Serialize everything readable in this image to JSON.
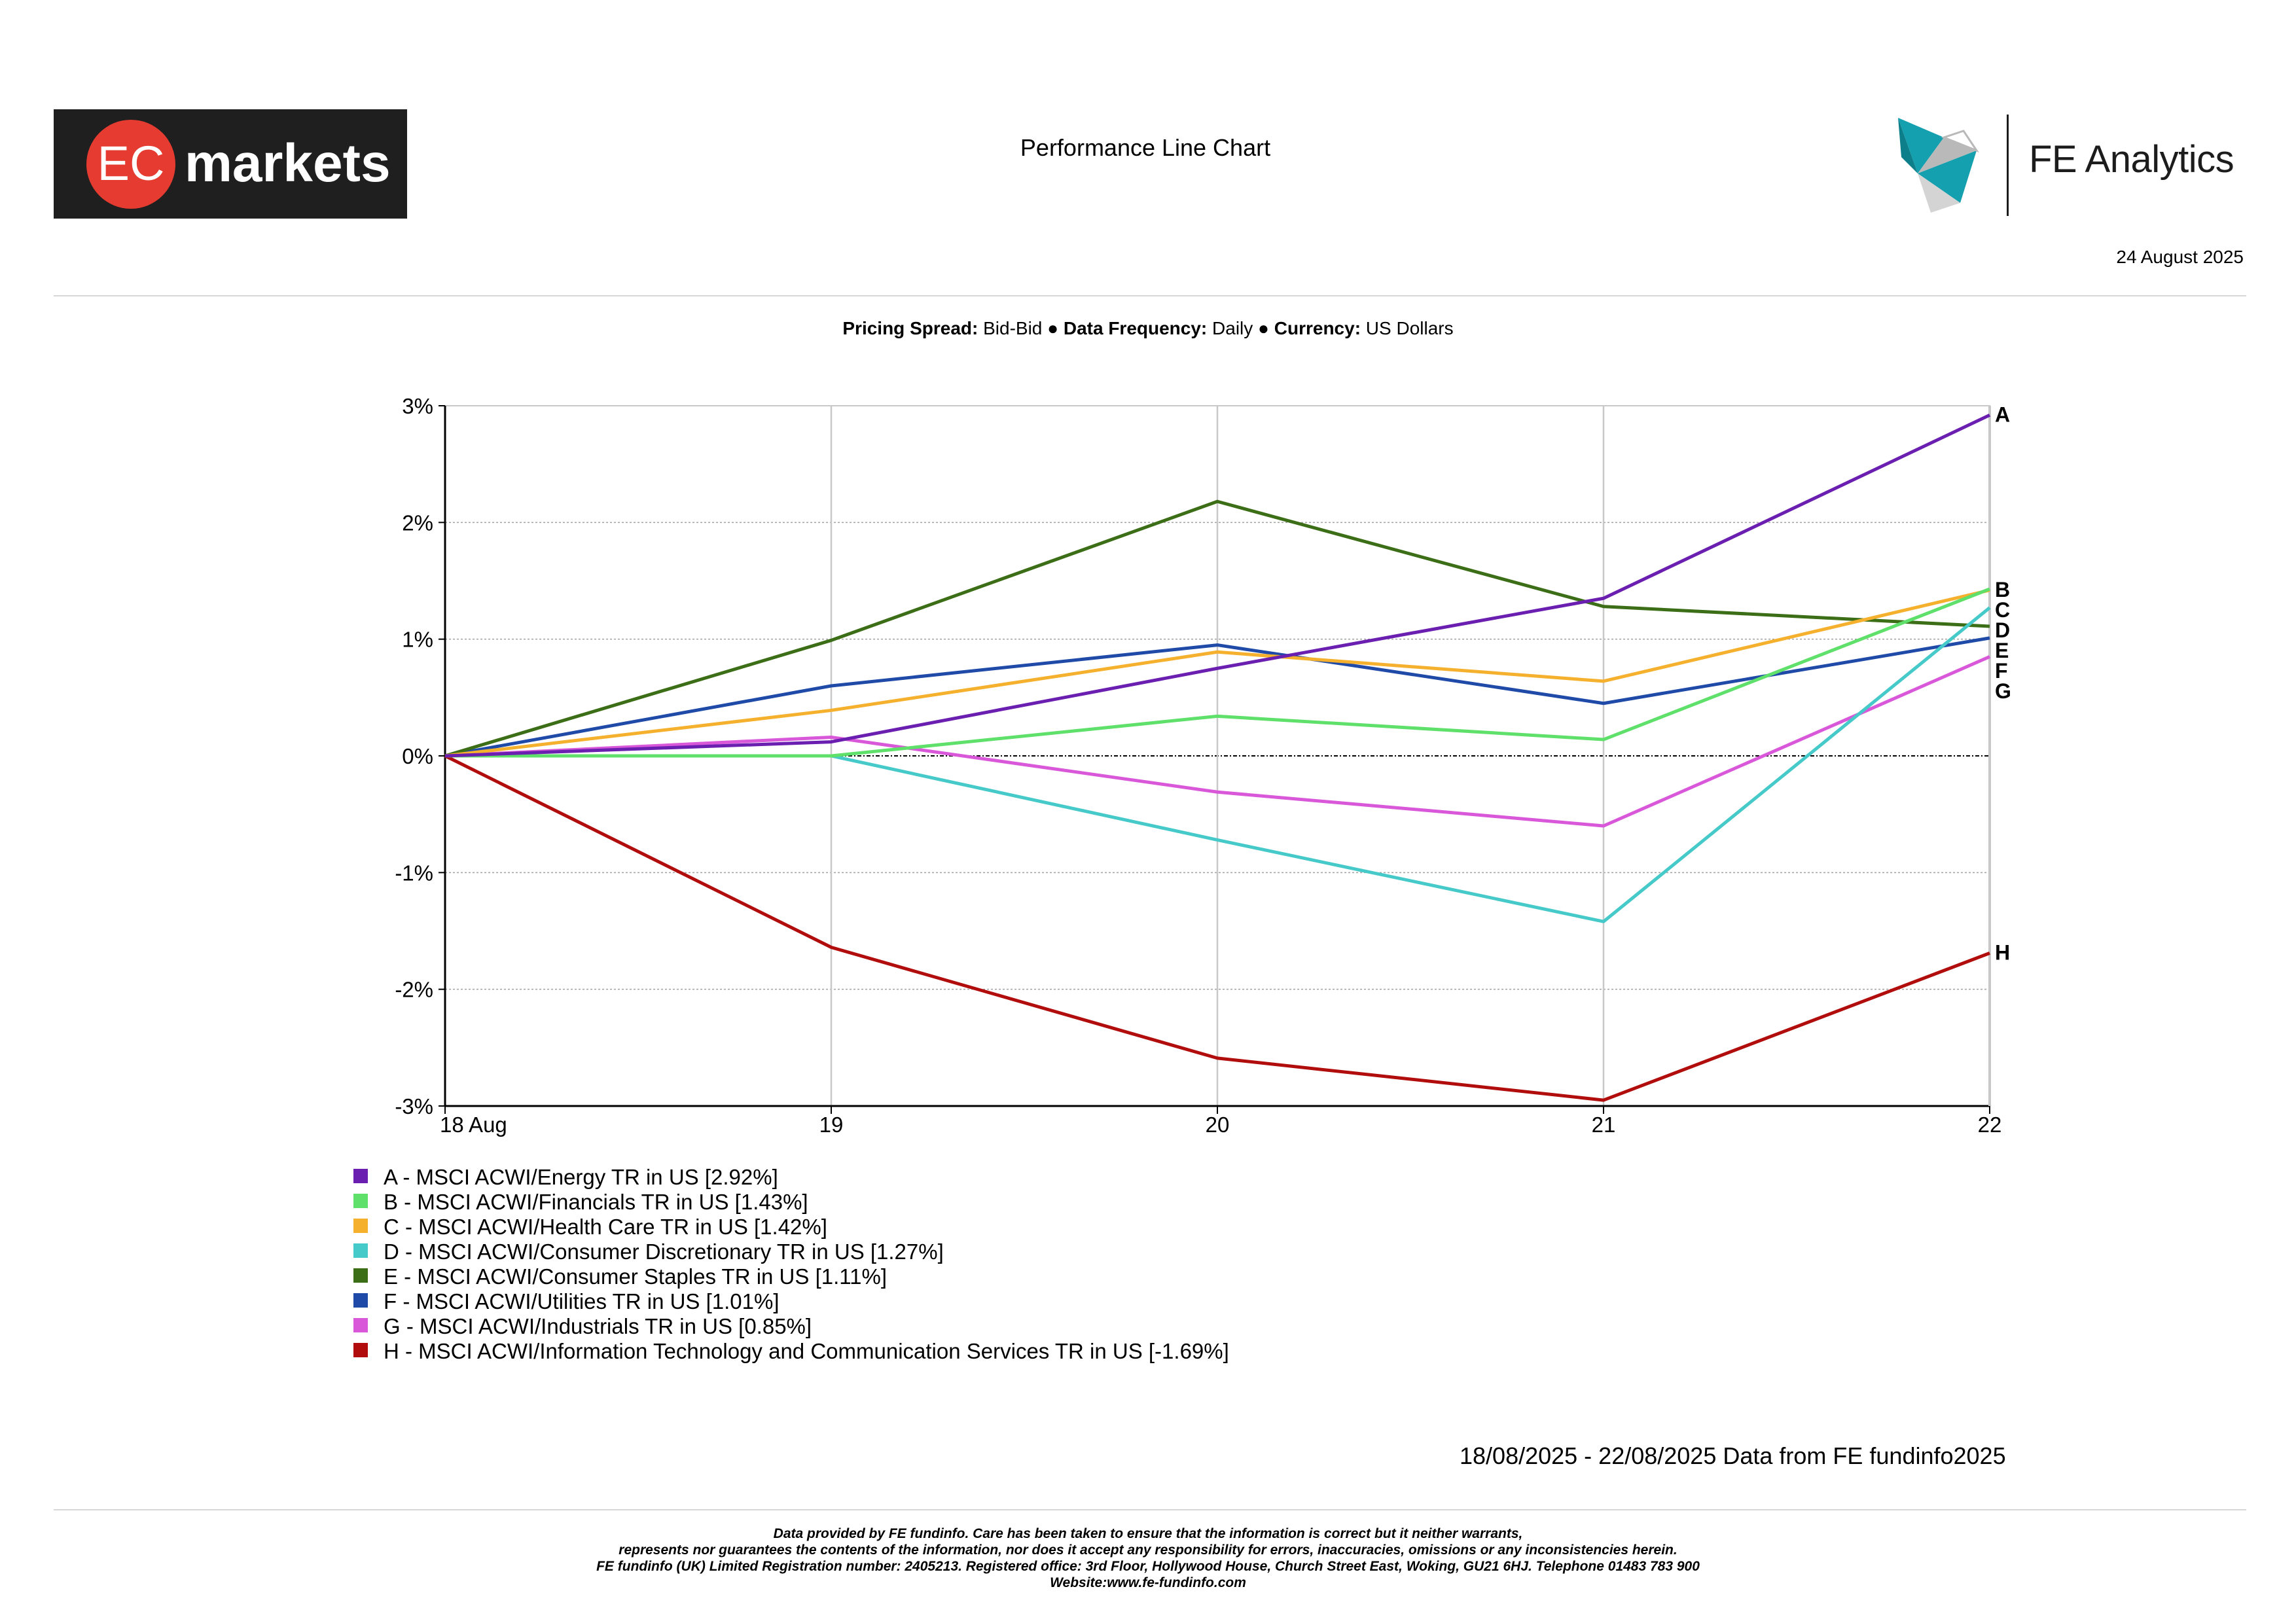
{
  "header": {
    "logo_text_left": "EC",
    "logo_text_right": "markets",
    "report_title": "Performance Line Chart",
    "analytics_name": "FE Analytics",
    "report_date": "24 August 2025"
  },
  "subtitle": {
    "pricing_spread_label": "Pricing Spread:",
    "pricing_spread_value": "Bid-Bid",
    "separator": "●",
    "data_frequency_label": "Data Frequency:",
    "data_frequency_value": "Daily",
    "currency_label": "Currency:",
    "currency_value": "US Dollars"
  },
  "chart_data": {
    "type": "line",
    "x": [
      "18 Aug",
      "19",
      "20",
      "21",
      "22"
    ],
    "ylim": [
      -3,
      3
    ],
    "yticks": [
      "3%",
      "2%",
      "1%",
      "0%",
      "-1%",
      "-2%",
      "-3%"
    ],
    "grid": true,
    "legend_position": "bottom-left",
    "series": [
      {
        "letter": "A",
        "name": "A - MSCI ACWI/Energy TR in US [2.92%]",
        "color": "#6a1fb0",
        "values": [
          0,
          0.12,
          0.75,
          1.35,
          2.92
        ]
      },
      {
        "letter": "B",
        "name": "B - MSCI ACWI/Financials TR in US [1.43%]",
        "color": "#5fe06a",
        "values": [
          0,
          0.0,
          0.34,
          0.14,
          1.43
        ]
      },
      {
        "letter": "C",
        "name": "C - MSCI ACWI/Health Care TR in US [1.42%]",
        "color": "#f5b12d",
        "values": [
          0,
          0.39,
          0.89,
          0.64,
          1.42
        ]
      },
      {
        "letter": "D",
        "name": "D - MSCI ACWI/Consumer Discretionary TR in US [1.27%]",
        "color": "#45c9c9",
        "values": [
          0,
          0.0,
          -0.72,
          -1.42,
          1.27
        ]
      },
      {
        "letter": "E",
        "name": "E - MSCI ACWI/Consumer Staples TR in US [1.11%]",
        "color": "#3b6e16",
        "values": [
          0,
          0.99,
          2.18,
          1.28,
          1.11
        ]
      },
      {
        "letter": "F",
        "name": "F - MSCI ACWI/Utilities TR in US [1.01%]",
        "color": "#1f4aa8",
        "values": [
          0,
          0.6,
          0.95,
          0.45,
          1.01
        ]
      },
      {
        "letter": "G",
        "name": "G - MSCI ACWI/Industrials TR in US [0.85%]",
        "color": "#d957d9",
        "values": [
          0,
          0.16,
          -0.31,
          -0.6,
          0.85
        ]
      },
      {
        "letter": "H",
        "name": "H - MSCI ACWI/Information Technology and Communication Services TR in US [-1.69%]",
        "color": "#b10d0d",
        "values": [
          0,
          -1.64,
          -2.59,
          -2.95,
          -1.69
        ]
      }
    ],
    "end_labels_order": [
      "B",
      "C",
      "D",
      "E",
      "F",
      "G"
    ]
  },
  "footer": {
    "date_range": "18/08/2025 - 22/08/2025 Data from FE fundinfo2025",
    "disclaimer_lines": [
      "Data provided by FE fundinfo. Care has been taken to ensure that the information is correct but it neither warrants,",
      "represents nor guarantees the contents of the information, nor does it accept any responsibility for errors, inaccuracies, omissions or any inconsistencies herein.",
      "FE fundinfo (UK) Limited Registration number: 2405213. Registered office: 3rd Floor, Hollywood House, Church Street East, Woking, GU21 6HJ. Telephone 01483 783 900",
      "Website:www.fe-fundinfo.com"
    ]
  },
  "colors": {
    "logo_bg": "#1f1f1f",
    "logo_red": "#e53b30",
    "fe_teal": "#14a0ae",
    "fe_grey": "#b9b9b9"
  }
}
